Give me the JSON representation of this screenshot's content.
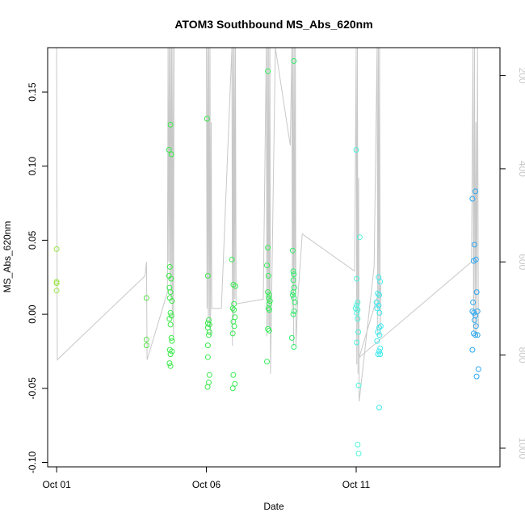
{
  "chart_data": {
    "type": "scatter",
    "title": "ATOM3 Southbound MS_Abs_620nm",
    "xlabel": "Date",
    "ylabel": "MS_Abs_620nm",
    "x_ticks": [
      "Oct 01",
      "Oct 06",
      "Oct 11"
    ],
    "x_tick_days": [
      1,
      6,
      11
    ],
    "xlim": [
      0.7,
      15.8
    ],
    "ylim": [
      -0.103,
      0.18
    ],
    "y_ticks": [
      -0.1,
      -0.05,
      0.0,
      0.05,
      0.1,
      0.15
    ],
    "y_tick_labels": [
      "-0.10",
      "-0.05",
      "0.00",
      "0.05",
      "0.10",
      "0.15"
    ],
    "right_axis": {
      "label_color": "#c8c8c8",
      "ticks": [
        200,
        400,
        600,
        800,
        1000
      ],
      "tick_labels": [
        "200",
        "400",
        "600",
        "800",
        "1000"
      ],
      "lim": [
        1040,
        140
      ]
    },
    "grid": false,
    "series": [
      {
        "points": [
          [
            1.0,
            0.044,
            "#9be64b"
          ],
          [
            1.0,
            0.022,
            "#9be64b"
          ],
          [
            1.0,
            0.021,
            "#9be64b"
          ],
          [
            1.0,
            0.016,
            "#9be64b"
          ],
          [
            4.0,
            0.011,
            "#5be04b"
          ],
          [
            4.0,
            -0.017,
            "#5be04b"
          ],
          [
            4.0,
            -0.021,
            "#5be04b"
          ],
          [
            4.75,
            0.111,
            "#3ce84b"
          ],
          [
            4.8,
            0.128,
            "#3ce84b"
          ],
          [
            4.83,
            0.108,
            "#3ce84b"
          ],
          [
            4.78,
            0.032,
            "#3ce84b"
          ],
          [
            4.75,
            0.026,
            "#3ce84b"
          ],
          [
            4.82,
            0.024,
            "#3ce84b"
          ],
          [
            4.77,
            0.018,
            "#3ce84b"
          ],
          [
            4.8,
            0.015,
            "#3ce84b"
          ],
          [
            4.78,
            0.011,
            "#3ce84b"
          ],
          [
            4.85,
            0.009,
            "#3ce84b"
          ],
          [
            4.8,
            0.001,
            "#3ce84b"
          ],
          [
            4.83,
            -0.001,
            "#3ce84b"
          ],
          [
            4.77,
            -0.003,
            "#3ce84b"
          ],
          [
            4.8,
            -0.007,
            "#3ce84b"
          ],
          [
            4.83,
            -0.016,
            "#3ce84b"
          ],
          [
            4.85,
            -0.018,
            "#3ce84b"
          ],
          [
            4.78,
            -0.024,
            "#3ce84b"
          ],
          [
            4.85,
            -0.025,
            "#3ce84b"
          ],
          [
            4.8,
            -0.027,
            "#3ce84b"
          ],
          [
            4.77,
            -0.033,
            "#3ce84b"
          ],
          [
            4.8,
            -0.035,
            "#3ce84b"
          ],
          [
            6.02,
            0.132,
            "#3ae84d"
          ],
          [
            6.05,
            0.026,
            "#3ae84d"
          ],
          [
            6.08,
            -0.004,
            "#3ae84d"
          ],
          [
            6.05,
            -0.006,
            "#3ae84d"
          ],
          [
            6.1,
            -0.007,
            "#3ae84d"
          ],
          [
            6.05,
            -0.009,
            "#3ae84d"
          ],
          [
            6.1,
            -0.012,
            "#3ae84d"
          ],
          [
            6.08,
            -0.014,
            "#3ae84d"
          ],
          [
            6.05,
            -0.021,
            "#3ae84d"
          ],
          [
            6.05,
            -0.029,
            "#3ae84d"
          ],
          [
            6.1,
            -0.041,
            "#3ae84d"
          ],
          [
            6.08,
            -0.046,
            "#3ae84d"
          ],
          [
            6.04,
            -0.049,
            "#3ae84d"
          ],
          [
            6.85,
            0.037,
            "#38ea50"
          ],
          [
            6.9,
            0.02,
            "#38ea50"
          ],
          [
            6.97,
            0.019,
            "#38ea50"
          ],
          [
            6.92,
            0.007,
            "#38ea50"
          ],
          [
            6.88,
            0.004,
            "#38ea50"
          ],
          [
            6.92,
            0.003,
            "#38ea50"
          ],
          [
            6.95,
            -0.002,
            "#38ea50"
          ],
          [
            6.9,
            -0.005,
            "#38ea50"
          ],
          [
            6.93,
            -0.008,
            "#38ea50"
          ],
          [
            6.88,
            -0.013,
            "#38ea50"
          ],
          [
            6.9,
            -0.041,
            "#38ea50"
          ],
          [
            6.95,
            -0.047,
            "#38ea50"
          ],
          [
            6.88,
            -0.05,
            "#38ea50"
          ],
          [
            8.05,
            0.164,
            "#35ec58"
          ],
          [
            8.05,
            0.045,
            "#35ec58"
          ],
          [
            8.02,
            0.033,
            "#35ec58"
          ],
          [
            8.07,
            0.026,
            "#35ec58"
          ],
          [
            8.05,
            0.015,
            "#35ec58"
          ],
          [
            8.1,
            0.013,
            "#35ec58"
          ],
          [
            8.08,
            0.011,
            "#35ec58"
          ],
          [
            8.12,
            0.009,
            "#35ec58"
          ],
          [
            8.1,
            0.007,
            "#35ec58"
          ],
          [
            8.07,
            0.004,
            "#35ec58"
          ],
          [
            8.1,
            0.003,
            "#35ec58"
          ],
          [
            8.05,
            -0.01,
            "#35ec58"
          ],
          [
            8.1,
            -0.011,
            "#35ec58"
          ],
          [
            8.02,
            -0.032,
            "#35ec58"
          ],
          [
            8.92,
            0.171,
            "#33ec6c"
          ],
          [
            8.88,
            0.043,
            "#33ec6c"
          ],
          [
            8.9,
            0.029,
            "#33ec6c"
          ],
          [
            8.92,
            0.027,
            "#33ec6c"
          ],
          [
            8.9,
            0.023,
            "#33ec6c"
          ],
          [
            8.93,
            0.018,
            "#33ec6c"
          ],
          [
            8.9,
            0.015,
            "#33ec6c"
          ],
          [
            8.88,
            0.013,
            "#33ec6c"
          ],
          [
            8.92,
            0.011,
            "#33ec6c"
          ],
          [
            8.95,
            0.008,
            "#33ec6c"
          ],
          [
            8.93,
            0.002,
            "#33ec6c"
          ],
          [
            8.9,
            0.0,
            "#33ec6c"
          ],
          [
            8.85,
            -0.016,
            "#33ec6c"
          ],
          [
            8.92,
            -0.022,
            "#33ec6c"
          ],
          [
            11.0,
            0.111,
            "#4ef2dc"
          ],
          [
            11.12,
            0.052,
            "#4ef2dc"
          ],
          [
            11.02,
            0.024,
            "#4ef2dc"
          ],
          [
            11.05,
            0.008,
            "#4ef2dc"
          ],
          [
            11.02,
            0.006,
            "#4ef2dc"
          ],
          [
            10.98,
            0.004,
            "#4ef2dc"
          ],
          [
            11.05,
            0.003,
            "#4ef2dc"
          ],
          [
            11.02,
            0.001,
            "#4ef2dc"
          ],
          [
            11.05,
            -0.003,
            "#4ef2dc"
          ],
          [
            11.07,
            -0.012,
            "#4ef2dc"
          ],
          [
            11.02,
            -0.019,
            "#4ef2dc"
          ],
          [
            11.08,
            -0.048,
            "#4ef2dc"
          ],
          [
            11.05,
            -0.088,
            "#4ef2dc"
          ],
          [
            11.08,
            -0.094,
            "#4ef2dc"
          ],
          [
            11.75,
            0.025,
            "#3ee8ec"
          ],
          [
            11.8,
            0.022,
            "#3ee8ec"
          ],
          [
            11.72,
            0.014,
            "#3ee8ec"
          ],
          [
            11.77,
            0.013,
            "#3ee8ec"
          ],
          [
            11.68,
            0.008,
            "#3ee8ec"
          ],
          [
            11.75,
            0.006,
            "#3ee8ec"
          ],
          [
            11.7,
            0.004,
            "#3ee8ec"
          ],
          [
            11.78,
            0.001,
            "#3ee8ec"
          ],
          [
            11.82,
            -0.008,
            "#3ee8ec"
          ],
          [
            11.77,
            -0.009,
            "#3ee8ec"
          ],
          [
            11.72,
            -0.012,
            "#3ee8ec"
          ],
          [
            11.78,
            -0.014,
            "#3ee8ec"
          ],
          [
            11.7,
            -0.018,
            "#3ee8ec"
          ],
          [
            11.8,
            -0.023,
            "#3ee8ec"
          ],
          [
            11.77,
            -0.025,
            "#3ee8ec"
          ],
          [
            11.73,
            -0.027,
            "#3ee8ec"
          ],
          [
            11.8,
            -0.027,
            "#3ee8ec"
          ],
          [
            11.77,
            -0.063,
            "#3ee8ec"
          ],
          [
            14.88,
            0.078,
            "#2fa8f0"
          ],
          [
            14.98,
            0.083,
            "#2fa8f0"
          ],
          [
            14.95,
            0.047,
            "#2fa8f0"
          ],
          [
            14.92,
            0.036,
            "#2fa8f0"
          ],
          [
            15.0,
            0.037,
            "#2fa8f0"
          ],
          [
            15.02,
            0.015,
            "#2fa8f0"
          ],
          [
            14.9,
            0.008,
            "#2fa8f0"
          ],
          [
            14.88,
            0.002,
            "#2fa8f0"
          ],
          [
            14.93,
            0.001,
            "#2fa8f0"
          ],
          [
            15.05,
            0.002,
            "#2fa8f0"
          ],
          [
            14.98,
            -0.001,
            "#2fa8f0"
          ],
          [
            14.95,
            -0.004,
            "#2fa8f0"
          ],
          [
            15.0,
            -0.008,
            "#2fa8f0"
          ],
          [
            14.92,
            -0.013,
            "#2fa8f0"
          ],
          [
            14.98,
            -0.014,
            "#2fa8f0"
          ],
          [
            15.05,
            -0.014,
            "#2fa8f0"
          ],
          [
            14.88,
            -0.024,
            "#2fa8f0"
          ],
          [
            15.08,
            -0.037,
            "#2fa8f0"
          ],
          [
            15.02,
            -0.042,
            "#2fa8f0"
          ]
        ]
      }
    ],
    "depth_trace": {
      "color": "#c8c8c8",
      "points": [
        [
          1.0,
          140
        ],
        [
          1.02,
          810
        ],
        [
          3.95,
          630
        ],
        [
          4.0,
          600
        ],
        [
          4.02,
          810
        ],
        [
          4.7,
          665
        ],
        [
          4.72,
          140
        ],
        [
          4.74,
          600
        ],
        [
          4.76,
          140
        ],
        [
          4.78,
          640
        ],
        [
          4.8,
          140
        ],
        [
          4.82,
          680
        ],
        [
          4.84,
          140
        ],
        [
          4.86,
          720
        ],
        [
          4.88,
          140
        ],
        [
          4.9,
          760
        ],
        [
          4.92,
          140
        ],
        [
          6.0,
          140
        ],
        [
          6.02,
          700
        ],
        [
          6.04,
          140
        ],
        [
          6.06,
          720
        ],
        [
          6.08,
          140
        ],
        [
          6.1,
          740
        ],
        [
          6.12,
          140
        ],
        [
          6.14,
          760
        ],
        [
          6.16,
          300
        ],
        [
          6.18,
          700
        ],
        [
          6.5,
          700
        ],
        [
          6.85,
          140
        ],
        [
          6.87,
          780
        ],
        [
          6.89,
          140
        ],
        [
          6.91,
          720
        ],
        [
          6.93,
          140
        ],
        [
          6.95,
          680
        ],
        [
          6.97,
          140
        ],
        [
          6.99,
          690
        ],
        [
          7.9,
          680
        ],
        [
          8.0,
          140
        ],
        [
          8.02,
          760
        ],
        [
          8.04,
          140
        ],
        [
          8.06,
          740
        ],
        [
          8.08,
          140
        ],
        [
          8.1,
          740
        ],
        [
          8.12,
          140
        ],
        [
          8.14,
          840
        ],
        [
          8.3,
          140
        ],
        [
          8.8,
          350
        ],
        [
          8.85,
          140
        ],
        [
          8.87,
          700
        ],
        [
          8.89,
          140
        ],
        [
          8.91,
          780
        ],
        [
          8.93,
          140
        ],
        [
          8.95,
          660
        ],
        [
          8.97,
          140
        ],
        [
          8.99,
          780
        ],
        [
          9.05,
          680
        ],
        [
          9.2,
          540
        ],
        [
          10.95,
          620
        ],
        [
          11.0,
          140
        ],
        [
          11.02,
          820
        ],
        [
          11.04,
          140
        ],
        [
          11.06,
          840
        ],
        [
          11.08,
          420
        ],
        [
          11.1,
          900
        ],
        [
          11.6,
          610
        ],
        [
          11.7,
          140
        ],
        [
          11.72,
          760
        ],
        [
          11.74,
          140
        ],
        [
          11.76,
          700
        ],
        [
          11.78,
          140
        ],
        [
          11.8,
          760
        ],
        [
          11.82,
          650
        ],
        [
          11.1,
          805
        ],
        [
          14.85,
          600
        ],
        [
          14.9,
          140
        ],
        [
          14.92,
          750
        ],
        [
          14.95,
          140
        ],
        [
          14.97,
          760
        ],
        [
          15.0,
          300
        ],
        [
          15.02,
          760
        ],
        [
          15.05,
          140
        ],
        [
          15.08,
          740
        ]
      ]
    }
  }
}
